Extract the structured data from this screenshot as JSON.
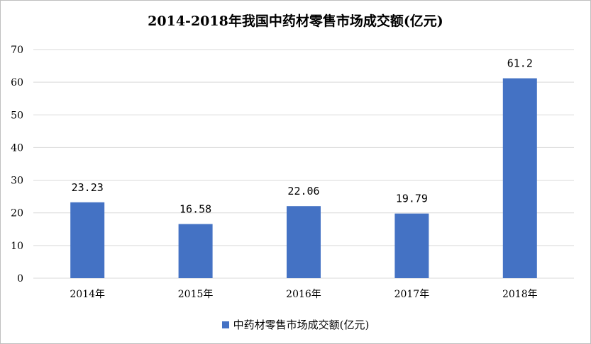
{
  "chart_data": {
    "type": "bar",
    "title": "2014-2018年我国中药材零售市场成交额(亿元)",
    "categories": [
      "2014年",
      "2015年",
      "2016年",
      "2017年",
      "2018年"
    ],
    "series": [
      {
        "name": "中药材零售市场成交额(亿元)",
        "values": [
          23.23,
          16.58,
          22.06,
          19.79,
          61.2
        ],
        "labels": [
          "23.23",
          "16.58",
          "22.06",
          "19.79",
          "61.2"
        ],
        "color": "#4472c4"
      }
    ],
    "yticks": [
      "0",
      "10",
      "20",
      "30",
      "40",
      "50",
      "60",
      "70"
    ],
    "ylim": [
      0,
      70
    ],
    "grid": true,
    "legend_position": "bottom",
    "gridline_color": "#d9d9d9"
  }
}
